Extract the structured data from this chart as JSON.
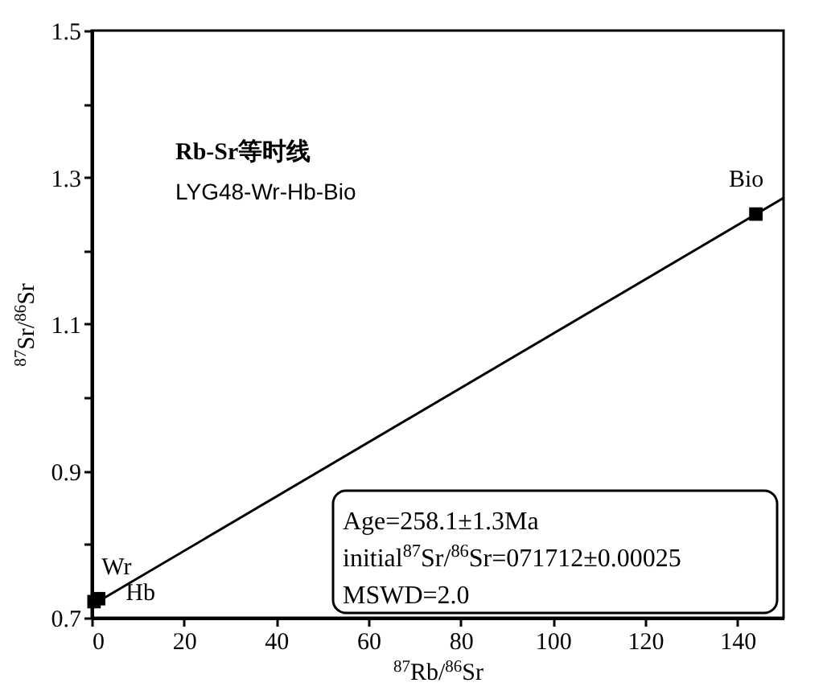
{
  "chart_data": {
    "type": "scatter",
    "title": "Rb-Sr等时线",
    "subtitle": "LYG48-Wr-Hb-Bio",
    "xlabel": "$^{87}$Rb/$^{86}$Sr",
    "ylabel": "$^{87}$Sr/$^{86}$Sr",
    "xlim": [
      0,
      150
    ],
    "ylim": [
      0.7,
      1.5
    ],
    "xticks": [
      0,
      20,
      40,
      60,
      80,
      100,
      120,
      140
    ],
    "yticks": [
      0.7,
      {
        "value": 0.8,
        "label": null
      },
      0.9,
      {
        "value": 1.0,
        "label": null
      },
      1.1,
      {
        "value": 1.2,
        "label": null
      },
      1.3,
      {
        "value": 1.4,
        "label": null
      },
      1.5
    ],
    "grid": false,
    "series": [
      {
        "type": "line",
        "color": "#000000",
        "x": [
          0,
          150
        ],
        "values": [
          0.717,
          1.272
        ]
      },
      {
        "type": "scatter",
        "color": "#000000",
        "marker": "square",
        "x": [
          0.5,
          1.5,
          144
        ],
        "values": [
          0.722,
          0.726,
          1.25
        ]
      }
    ],
    "annotations": [
      "Age=258.1±1.3Ma",
      "initial$^{87}$Sr/$^{86}$Sr=071712±0.00025",
      "MSWD=2.0",
      {
        "text": "Wr",
        "x": 0.5,
        "y": 0.722
      },
      {
        "text": "Hb",
        "x": 1.5,
        "y": 0.726
      },
      {
        "text": "Bio",
        "x": 144,
        "y": 1.25
      }
    ]
  }
}
